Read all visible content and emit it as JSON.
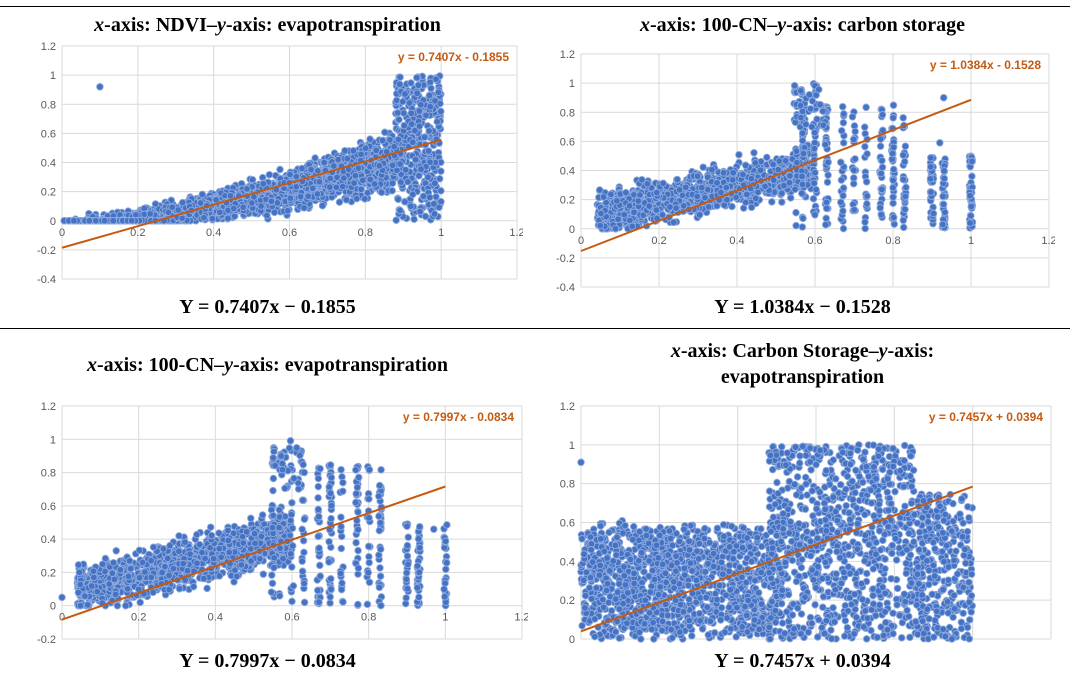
{
  "colors": {
    "point_fill": "#4472c4",
    "point_stroke": "#8faadc",
    "trend": "#c55a11",
    "grid": "#d9d9d9",
    "tick_text": "#595959",
    "plot_bg": "#ffffff"
  },
  "charts": [
    {
      "title_parts": [
        {
          "t": "x",
          "i": true
        },
        {
          "t": "-axis: NDVI–",
          "i": false
        },
        {
          "t": "y",
          "i": true
        },
        {
          "t": "-axis: evapotranspiration",
          "i": false
        }
      ],
      "equation_caption": "Y = 0.7407x − 0.1855"
    },
    {
      "title_parts": [
        {
          "t": "x",
          "i": true
        },
        {
          "t": "-axis: 100-CN–",
          "i": false
        },
        {
          "t": "y",
          "i": true
        },
        {
          "t": "-axis: carbon storage",
          "i": false
        }
      ],
      "equation_caption": "Y = 1.0384x − 0.1528"
    },
    {
      "title_parts": [
        {
          "t": "x",
          "i": true
        },
        {
          "t": "-axis: 100-CN–",
          "i": false
        },
        {
          "t": "y",
          "i": true
        },
        {
          "t": "-axis: evapotranspiration",
          "i": false
        }
      ],
      "equation_caption": "Y = 0.7997x − 0.0834"
    },
    {
      "title_parts": [
        {
          "t": "x",
          "i": true
        },
        {
          "t": "-axis: Carbon Storage–",
          "i": false
        },
        {
          "t": "y",
          "i": true
        },
        {
          "t": "-axis:",
          "i": false
        },
        {
          "br": true
        },
        {
          "t": "evapotranspiration",
          "i": false
        }
      ],
      "equation_caption": "Y = 0.7457x + 0.0394"
    }
  ],
  "chart_data": [
    {
      "type": "scatter",
      "xlim": [
        0,
        1.2
      ],
      "ylim": [
        -0.4,
        1.2
      ],
      "xticks": [
        0,
        0.2,
        0.4,
        0.6,
        0.8,
        1,
        1.2
      ],
      "xtick_labels": [
        "0",
        "0.2",
        "0.4",
        "0.6",
        "0.8",
        "1",
        "1.2"
      ],
      "yticks": [
        -0.4,
        -0.2,
        0,
        0.2,
        0.4,
        0.6,
        0.8,
        1,
        1.2
      ],
      "ytick_labels": [
        "-0.4",
        "-0.2",
        "0",
        "0.2",
        "0.4",
        "0.6",
        "0.8",
        "1",
        "1.2"
      ],
      "grid": true,
      "trendline": {
        "slope": 0.7407,
        "intercept": -0.1855,
        "x_range": [
          0,
          1
        ],
        "label": "y = 0.7407x - 0.1855"
      },
      "point_cloud": {
        "kind": "ndvi_et",
        "x_range": [
          0,
          1
        ],
        "y_range": [
          0,
          1
        ],
        "approx_points": 2400
      },
      "outliers": [
        [
          0.1,
          0.92
        ]
      ]
    },
    {
      "type": "scatter",
      "xlim": [
        0,
        1.2
      ],
      "ylim": [
        -0.4,
        1.2
      ],
      "xticks": [
        0,
        0.2,
        0.4,
        0.6,
        0.8,
        1,
        1.2
      ],
      "xtick_labels": [
        "0",
        "0.2",
        "0.4",
        "0.6",
        "0.8",
        "1",
        "1.2"
      ],
      "yticks": [
        -0.4,
        -0.2,
        0,
        0.2,
        0.4,
        0.6,
        0.8,
        1,
        1.2
      ],
      "ytick_labels": [
        "-0.4",
        "-0.2",
        "0",
        "0.2",
        "0.4",
        "0.6",
        "0.8",
        "1",
        "1.2"
      ],
      "grid": true,
      "trendline": {
        "slope": 1.0384,
        "intercept": -0.1528,
        "x_range": [
          0,
          1
        ],
        "label": "y = 1.0384x - 0.1528"
      },
      "point_cloud": {
        "kind": "cn_columns",
        "x_range": [
          0.05,
          1
        ],
        "y_range": [
          0,
          1
        ],
        "approx_points": 2000
      },
      "column_positions": [
        0.55,
        0.57,
        0.6,
        0.63,
        0.67,
        0.7,
        0.73,
        0.77,
        0.8,
        0.83,
        0.9,
        0.93,
        1
      ],
      "outliers": [
        [
          0.93,
          0.9
        ],
        [
          0.92,
          0.59
        ]
      ]
    },
    {
      "type": "scatter",
      "xlim": [
        0,
        1.2
      ],
      "ylim": [
        -0.2,
        1.2
      ],
      "xticks": [
        0,
        0.2,
        0.4,
        0.6,
        0.8,
        1,
        1.2
      ],
      "xtick_labels": [
        "0",
        "0.2",
        "0.4",
        "0.6",
        "0.8",
        "1",
        "1.2"
      ],
      "yticks": [
        -0.2,
        0,
        0.2,
        0.4,
        0.6,
        0.8,
        1,
        1.2
      ],
      "ytick_labels": [
        "-0.2",
        "0",
        "0.2",
        "0.4",
        "0.6",
        "0.8",
        "1",
        "1.2"
      ],
      "grid": true,
      "trendline": {
        "slope": 0.7997,
        "intercept": -0.0834,
        "x_range": [
          0,
          1
        ],
        "label": "y = 0.7997x - 0.0834"
      },
      "point_cloud": {
        "kind": "cn_columns",
        "x_range": [
          0.05,
          1
        ],
        "y_range": [
          0,
          1
        ],
        "approx_points": 1900
      },
      "column_positions": [
        0.55,
        0.57,
        0.6,
        0.63,
        0.67,
        0.7,
        0.73,
        0.77,
        0.8,
        0.83,
        0.9,
        0.93,
        1
      ],
      "outliers": [
        [
          0.0,
          0.05
        ],
        [
          0.97,
          0.46
        ]
      ]
    },
    {
      "type": "scatter",
      "xlim": [
        0,
        1.2
      ],
      "ylim": [
        0,
        1.2
      ],
      "xticks": [
        0,
        0.2,
        0.4,
        0.6,
        0.8,
        1,
        1.2
      ],
      "xtick_labels": [
        "0",
        "0.2",
        "0.4",
        "0.6",
        "0.8",
        "1",
        "1.2"
      ],
      "yticks": [
        0,
        0.2,
        0.4,
        0.6,
        0.8,
        1,
        1.2
      ],
      "ytick_labels": [
        "0",
        "0.2",
        "0.4",
        "0.6",
        "0.8",
        "1",
        "1.2"
      ],
      "grid": true,
      "trendline": {
        "slope": 0.7457,
        "intercept": 0.0394,
        "x_range": [
          0,
          1
        ],
        "label": "y = 0.7457x + 0.0394"
      },
      "point_cloud": {
        "kind": "cs_et",
        "x_range": [
          0,
          1
        ],
        "y_range": [
          0,
          1
        ],
        "approx_points": 2600
      },
      "outliers": [
        [
          0.0,
          0.91
        ]
      ]
    }
  ]
}
